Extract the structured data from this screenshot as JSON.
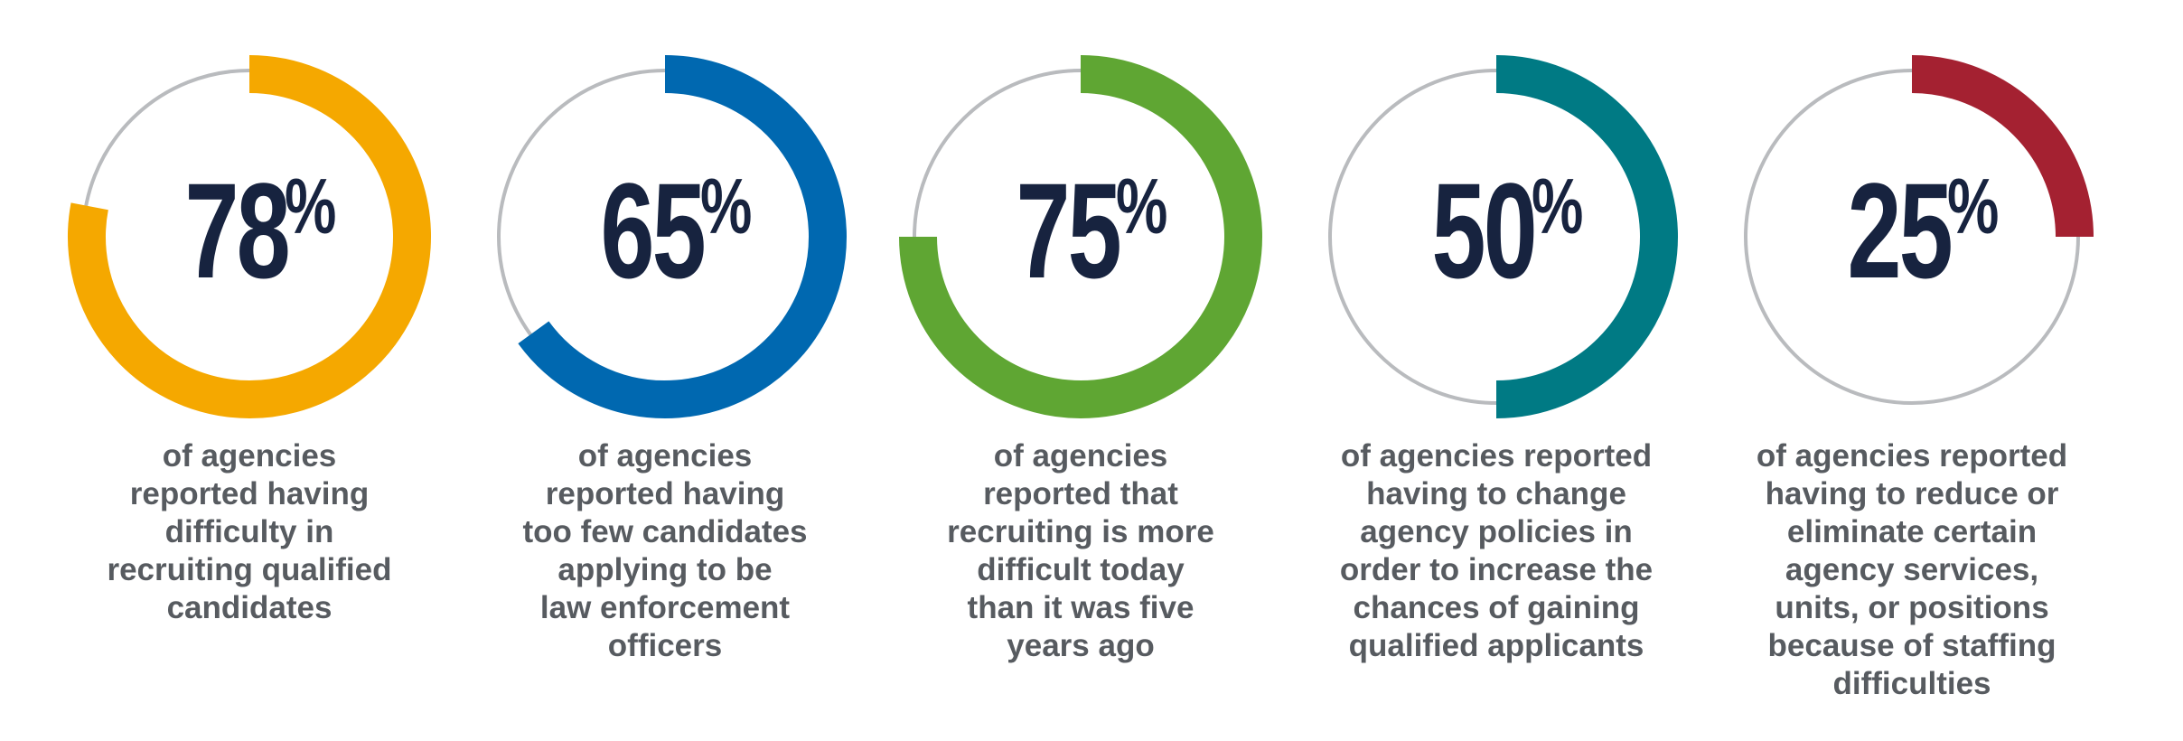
{
  "chart_data": {
    "type": "donut",
    "track_color": "#b9bbbe",
    "text_color": "#17233f",
    "caption_color": "#575b60",
    "items": [
      {
        "value": 78,
        "label": "78",
        "unit": "%",
        "color": "#f5a800",
        "caption": [
          "of agencies",
          "reported having",
          "difficulty in",
          "recruiting qualified",
          "candidates"
        ]
      },
      {
        "value": 65,
        "label": "65",
        "unit": "%",
        "color": "#0068b0",
        "caption": [
          "of agencies",
          "reported having",
          "too few candidates",
          "applying to be",
          "law enforcement",
          "officers"
        ]
      },
      {
        "value": 75,
        "label": "75",
        "unit": "%",
        "color": "#5fa633",
        "caption": [
          "of agencies",
          "reported that",
          "recruiting is more",
          "difficult today",
          "than it was five",
          "years ago"
        ]
      },
      {
        "value": 50,
        "label": "50",
        "unit": "%",
        "color": "#007a84",
        "caption": [
          "of agencies reported",
          "having to change",
          "agency policies in",
          "order to increase the",
          "chances of gaining",
          "qualified applicants"
        ]
      },
      {
        "value": 25,
        "label": "25",
        "unit": "%",
        "color": "#a42131",
        "caption": [
          "of agencies reported",
          "having to reduce or",
          "eliminate certain",
          "agency services,",
          "units, or positions",
          "because of staffing",
          "difficulties"
        ]
      }
    ]
  }
}
